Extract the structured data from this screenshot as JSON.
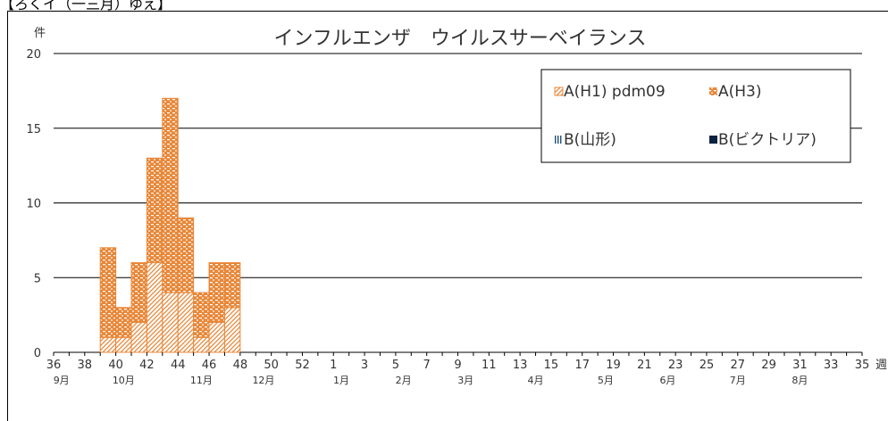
{
  "top_snippet": "【ろくイ（一三月）ゆえ】",
  "chart_data": {
    "type": "bar",
    "title": "インフルエンザ　ウイルスサーベイランス",
    "ylabel": "件",
    "xlabel": "週",
    "ylim": [
      0,
      20
    ],
    "yticks": [
      0,
      5,
      10,
      15,
      20
    ],
    "grid": true,
    "legend_position": "top-right",
    "week_ticks": [
      "36",
      "38",
      "40",
      "42",
      "44",
      "46",
      "48",
      "50",
      "52",
      "1",
      "3",
      "5",
      "7",
      "9",
      "11",
      "13",
      "15",
      "17",
      "19",
      "21",
      "23",
      "25",
      "27",
      "29",
      "31",
      "33",
      "35"
    ],
    "months": [
      "9月",
      "10月",
      "11月",
      "12月",
      "1月",
      "2月",
      "3月",
      "4月",
      "5月",
      "6月",
      "7月",
      "8月"
    ],
    "weeks": [
      39,
      40,
      41,
      42,
      43,
      44,
      45,
      46,
      47
    ],
    "series": [
      {
        "name": "A(H1) pdm09",
        "values": [
          1,
          1,
          2,
          6,
          4,
          4,
          1,
          2,
          3
        ]
      },
      {
        "name": "A(H3)",
        "values": [
          6,
          2,
          4,
          7,
          13,
          5,
          3,
          4,
          3
        ]
      },
      {
        "name": "B(山形)",
        "values": [
          0,
          0,
          0,
          0,
          0,
          0,
          0,
          0,
          0
        ]
      },
      {
        "name": "B(ビクトリア)",
        "values": [
          0,
          0,
          0,
          0,
          0,
          0,
          0,
          0,
          0
        ]
      }
    ],
    "colors": {
      "a_h1": "#e8883a",
      "a_h3": "#e8883a",
      "b_yamagata": "#1f4e79",
      "b_victoria": "#0d2240"
    }
  }
}
